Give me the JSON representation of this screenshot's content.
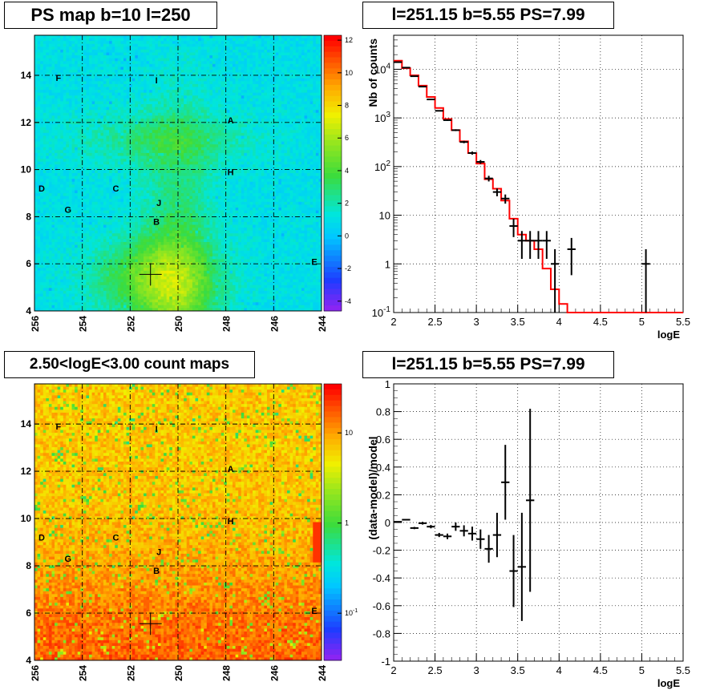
{
  "panels": {
    "ps_map": {
      "title": "PS map b=10 l=250",
      "x_ticks": [
        "256",
        "254",
        "252",
        "250",
        "248",
        "246",
        "244"
      ],
      "y_ticks": [
        "4",
        "6",
        "8",
        "10",
        "12",
        "14"
      ],
      "colorbar_ticks": [
        "12",
        "10",
        "8",
        "6",
        "4",
        "2",
        "0",
        "-2",
        "-4"
      ]
    },
    "count_map": {
      "title": "2.50<logE<3.00 count maps",
      "x_ticks": [
        "256",
        "254",
        "252",
        "250",
        "248",
        "246",
        "244"
      ],
      "y_ticks": [
        "4",
        "6",
        "8",
        "10",
        "12",
        "14"
      ],
      "colorbar_ticks": [
        "10",
        "1",
        "10-1"
      ]
    },
    "spectrum": {
      "title": "l=251.15 b=5.55 PS=7.99"
    },
    "residual": {
      "title": "l=251.15 b=5.55 PS=7.99"
    }
  },
  "map_labels": [
    {
      "name": "F",
      "l": 255.0,
      "b": 13.9
    },
    {
      "name": "I",
      "l": 250.9,
      "b": 13.8
    },
    {
      "name": "A",
      "l": 247.8,
      "b": 12.1
    },
    {
      "name": "H",
      "l": 247.8,
      "b": 9.9
    },
    {
      "name": "D",
      "l": 255.7,
      "b": 9.2
    },
    {
      "name": "C",
      "l": 252.6,
      "b": 9.2
    },
    {
      "name": "J",
      "l": 250.8,
      "b": 8.6
    },
    {
      "name": "G",
      "l": 254.6,
      "b": 8.3
    },
    {
      "name": "B",
      "l": 250.9,
      "b": 7.8
    },
    {
      "name": "E",
      "l": 244.3,
      "b": 6.1
    }
  ],
  "source_marker": {
    "l": 251.15,
    "b": 5.55
  },
  "colors": {
    "data": "#000000",
    "model": "#ff0000",
    "grid": "#000000"
  },
  "chart_data": [
    {
      "type": "line",
      "log_y": true,
      "xlabel": "logE",
      "ylabel": "Nb of counts",
      "xlim": [
        2,
        5.5
      ],
      "ylim": [
        0.1,
        50000
      ],
      "x_ticks": [
        "2",
        "2.5",
        "3",
        "3.5",
        "4",
        "4.5",
        "5",
        "5.5"
      ],
      "y_ticks": [
        "10^-1",
        "1",
        "10",
        "10^2",
        "10^3",
        "10^4"
      ],
      "grid": true,
      "series": [
        {
          "x": [
            2.05,
            2.15,
            2.25,
            2.35,
            2.45,
            2.55,
            2.65,
            2.75,
            2.85,
            2.95,
            3.05,
            3.15,
            3.25,
            3.35,
            3.45,
            3.55,
            3.65,
            3.75,
            3.85,
            3.95,
            4.05,
            4.15,
            4.25,
            4.35,
            4.45,
            4.55,
            4.65,
            4.75,
            4.85,
            4.95,
            5.05,
            5.15,
            5.25,
            5.35,
            5.45
          ],
          "y": [
            15000,
            10500,
            7500,
            4600,
            2700,
            1600,
            950,
            560,
            330,
            190,
            115,
            55,
            35,
            20,
            8.5,
            4,
            3,
            2,
            0.8,
            0.3,
            0.15,
            0.1,
            0.1,
            0.1,
            0.1,
            0.1,
            0.1,
            0.1,
            0.1,
            0.1,
            0.1,
            0.1,
            0.1,
            0.1,
            0.1
          ]
        },
        {
          "x": [
            2.05,
            2.15,
            2.25,
            2.35,
            2.45,
            2.55,
            2.65,
            2.75,
            2.85,
            2.95,
            3.05,
            3.15,
            3.25,
            3.35,
            3.45,
            3.55,
            3.65,
            3.75,
            3.85,
            3.95,
            4.15,
            5.05
          ],
          "y": [
            14000,
            10800,
            7200,
            4400,
            2400,
            1400,
            900,
            560,
            320,
            190,
            125,
            57,
            30,
            22,
            6,
            3,
            3,
            3,
            3,
            1,
            2,
            1
          ]
        }
      ]
    },
    {
      "type": "scatter",
      "xlabel": "logE",
      "ylabel": "(data-model)/model",
      "xlim": [
        2,
        5.5
      ],
      "ylim": [
        -1,
        1
      ],
      "x_ticks": [
        "2",
        "2.5",
        "3",
        "3.5",
        "4",
        "4.5",
        "5",
        "5.5"
      ],
      "y_ticks": [
        "-1",
        "-0.8",
        "-0.6",
        "-0.4",
        "-0.2",
        "0",
        "0.2",
        "0.4",
        "0.6",
        "0.8",
        "1"
      ],
      "grid": true,
      "x": [
        2.05,
        2.15,
        2.25,
        2.35,
        2.45,
        2.55,
        2.65,
        2.75,
        2.85,
        2.95,
        3.05,
        3.15,
        3.25,
        3.35,
        3.45,
        3.55,
        3.65
      ],
      "y": [
        0.005,
        0.02,
        -0.04,
        -0.005,
        -0.03,
        -0.09,
        -0.1,
        -0.03,
        -0.06,
        -0.08,
        -0.12,
        -0.19,
        -0.09,
        0.29,
        -0.35,
        -0.32,
        0.16
      ],
      "err": [
        0.005,
        0.006,
        0.008,
        0.01,
        0.012,
        0.015,
        0.02,
        0.03,
        0.04,
        0.05,
        0.07,
        0.1,
        0.16,
        0.27,
        0.26,
        0.39,
        0.66
      ]
    }
  ]
}
